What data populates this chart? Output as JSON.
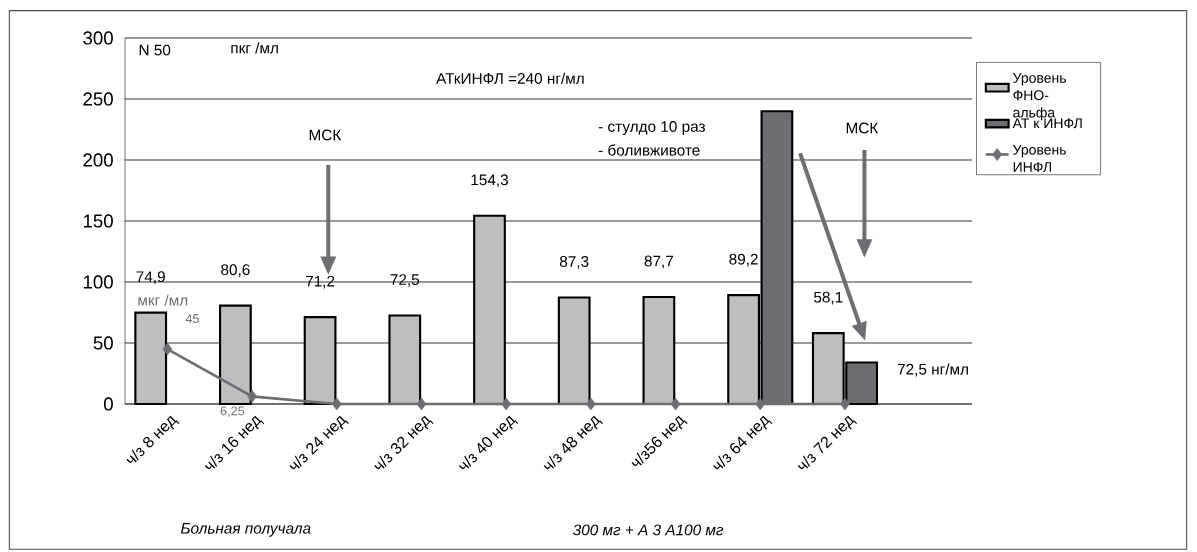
{
  "chart_data": {
    "type": "bar",
    "ylabel": "пкг /мл",
    "categories": [
      "ч/з 8 нед",
      "ч/з 16 нед",
      "ч/з 24 нед",
      "ч/з 32 нед",
      "ч/з 40 нед",
      "ч/з 48 нед",
      "ч/з56 нед",
      "ч/з 64 нед",
      "ч/з 72 нед",
      null
    ],
    "series": [
      {
        "name": "Уровень ФНО-альфа",
        "color": "#bcbec0",
        "values": [
          74.9,
          80.6,
          71.2,
          72.5,
          154.3,
          87.3,
          87.7,
          89.2,
          58.1,
          null
        ],
        "value_labels": [
          "74,9",
          "80,6",
          "71,2",
          "72,5",
          "154,3",
          "87,3",
          "87,7",
          "89,2",
          "58,1",
          null
        ]
      },
      {
        "name": "АТ к ИНФЛ",
        "color": "#6d6e71",
        "values": [
          null,
          null,
          null,
          null,
          null,
          null,
          null,
          240,
          34,
          null
        ]
      },
      {
        "name": "Уровень ИНФЛ",
        "type": "line",
        "color": "#6d6e71",
        "values": [
          45,
          6.25,
          0,
          0,
          0,
          0,
          0,
          0,
          0,
          null
        ],
        "value_labels": [
          "45",
          "6,25",
          null,
          null,
          null,
          null,
          null,
          null,
          null,
          null
        ]
      }
    ],
    "ylim": [
      0,
      300
    ],
    "yticks": [
      0,
      50,
      100,
      150,
      200,
      250,
      300
    ],
    "grid": "y",
    "legend": "right",
    "marker": "diamond",
    "annotations": [
      "N 50",
      "АТкИНФЛ =240 нг/мл",
      "МСК",
      "- стулдо 10 раз",
      "- боливживоте",
      "МСК",
      "72,5 нг/мл",
      "мкг /мл",
      "Больная получала",
      "300 мг + А 3 А100 мг"
    ]
  }
}
